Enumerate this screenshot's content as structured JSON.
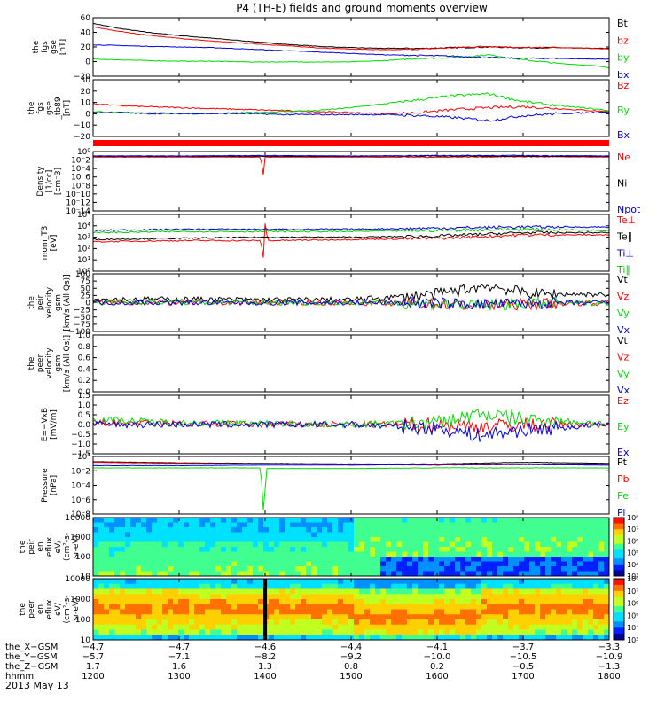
{
  "title": "P4 (TH-E) fields and ground moments overview",
  "date_label": "2013 May 13",
  "colors": {
    "black": "#000000",
    "red": "#ff0000",
    "green": "#00dd00",
    "blue": "#0000dd",
    "lime": "#00c800"
  },
  "chart_data": [
    {
      "type": "line",
      "id": "p1",
      "ylabel": [
        "the",
        "fgs",
        "gse",
        "[nT]"
      ],
      "yticks": [
        "60",
        "40",
        "20",
        "0",
        "−20"
      ],
      "yrange": [
        -20,
        62
      ],
      "series": [
        {
          "name": "Bt",
          "color": "black",
          "x": [
            1200,
            1230,
            1260,
            1300,
            1340,
            1380,
            1420,
            1460,
            1500,
            1540,
            1580,
            1620,
            1660,
            1700,
            1740,
            1780,
            1800
          ],
          "y": [
            54,
            47,
            42,
            37,
            33,
            29,
            25,
            22,
            20,
            19,
            19,
            20,
            21,
            20,
            20,
            19,
            19
          ]
        },
        {
          "name": "bz",
          "color": "red",
          "x": [
            1200,
            1230,
            1260,
            1300,
            1340,
            1380,
            1420,
            1460,
            1500,
            1540,
            1580,
            1620,
            1660,
            1700,
            1740,
            1780,
            1800
          ],
          "y": [
            49,
            43,
            38,
            33,
            29,
            26,
            23,
            20,
            18,
            17,
            18,
            20,
            22,
            20,
            20,
            19,
            18
          ]
        },
        {
          "name": "by",
          "color": "green",
          "x": [
            1200,
            1230,
            1260,
            1300,
            1340,
            1380,
            1420,
            1460,
            1500,
            1540,
            1580,
            1620,
            1660,
            1700,
            1740,
            1780,
            1800
          ],
          "y": [
            4,
            3,
            2,
            1,
            1,
            0,
            0,
            0,
            0,
            2,
            5,
            6,
            10,
            3,
            -2,
            -5,
            -8
          ]
        },
        {
          "name": "bx",
          "color": "blue",
          "x": [
            1200,
            1230,
            1260,
            1300,
            1340,
            1380,
            1420,
            1460,
            1500,
            1540,
            1580,
            1620,
            1660,
            1700,
            1740,
            1780,
            1800
          ],
          "y": [
            24,
            23,
            22,
            21,
            20,
            18,
            16,
            14,
            12,
            10,
            9,
            8,
            6,
            5,
            5,
            4,
            4
          ]
        }
      ]
    },
    {
      "type": "line",
      "id": "p2",
      "ylabel": [
        "the",
        "fgs",
        "gse",
        "_tb89",
        "[nT]"
      ],
      "yticks": [
        "30",
        "20",
        "10",
        "0",
        "−10",
        "−20"
      ],
      "yrange": [
        -25,
        32
      ],
      "series": [
        {
          "name": "Bz",
          "color": "red",
          "x": [
            1200,
            1230,
            1260,
            1300,
            1340,
            1380,
            1420,
            1460,
            1500,
            1540,
            1580,
            1620,
            1660,
            1700,
            1740,
            1780,
            1800
          ],
          "y": [
            8,
            6,
            5,
            4,
            3,
            2,
            1,
            0,
            -1,
            -2,
            -1,
            2,
            4,
            5,
            3,
            1,
            0
          ]
        },
        {
          "name": "By",
          "color": "green",
          "x": [
            1200,
            1230,
            1260,
            1300,
            1340,
            1380,
            1420,
            1460,
            1500,
            1540,
            1580,
            1620,
            1660,
            1700,
            1740,
            1780,
            1800
          ],
          "y": [
            0,
            -1,
            -1,
            -2,
            -2,
            -1,
            0,
            1,
            4,
            8,
            12,
            16,
            18,
            10,
            6,
            3,
            1
          ]
        },
        {
          "name": "Bx",
          "color": "blue",
          "x": [
            1200,
            1230,
            1260,
            1300,
            1340,
            1380,
            1420,
            1460,
            1500,
            1540,
            1580,
            1620,
            1660,
            1700,
            1740,
            1780,
            1800
          ],
          "y": [
            -1,
            -1,
            -2,
            -2,
            -2,
            -2,
            -3,
            -3,
            -3,
            -3,
            -4,
            -6,
            -9,
            -4,
            -2,
            -1,
            0
          ]
        }
      ]
    },
    {
      "type": "line",
      "id": "p3",
      "ylabel": [
        "Density",
        "[1/cc]",
        "[cm⁻3]"
      ],
      "yticks": [
        "10⁰",
        "10⁻2",
        "10⁻4",
        "10⁻6",
        "10⁻8",
        "10⁻10",
        "10⁻12",
        "10⁻14"
      ],
      "yrange": [
        -14,
        1
      ],
      "series": [
        {
          "name": "Ne",
          "color": "red",
          "x": [
            1200,
            1300,
            1395,
            1398,
            1400,
            1403,
            1500,
            1600,
            1700,
            1800
          ],
          "y": [
            -0.4,
            -0.4,
            -0.4,
            -5,
            -0.3,
            -0.4,
            -0.4,
            -0.4,
            -0.3,
            -0.4
          ]
        },
        {
          "name": "Ni",
          "color": "black",
          "x": [
            1200,
            1300,
            1400,
            1500,
            1600,
            1700,
            1800
          ],
          "y": [
            -0.2,
            -0.2,
            -0.2,
            -0.2,
            -0.1,
            -0.2,
            -0.2
          ]
        },
        {
          "name": "Npot",
          "color": "blue",
          "x": [
            1200,
            1300,
            1400,
            1500,
            1600,
            1700,
            1800
          ],
          "y": [
            -0.1,
            -0.1,
            0,
            -0.1,
            0,
            0,
            -0.1
          ]
        }
      ]
    },
    {
      "type": "line",
      "id": "p4",
      "ylabel": [
        "mom_T3",
        "[eV]"
      ],
      "yticks": [
        "10⁵",
        "10⁴",
        "10³",
        "10²",
        "10¹",
        "10⁰"
      ],
      "yrange": [
        0,
        5
      ],
      "series": [
        {
          "name": "Te⊥",
          "color": "red",
          "x": [
            1200,
            1300,
            1395,
            1398,
            1400,
            1403,
            1500,
            1600,
            1700,
            1800
          ],
          "y": [
            2.6,
            2.7,
            2.7,
            1.2,
            4.2,
            2.7,
            2.8,
            2.9,
            3.2,
            3.2
          ]
        },
        {
          "name": "Te∥",
          "color": "black",
          "x": [
            1200,
            1300,
            1400,
            1500,
            1600,
            1700,
            1800
          ],
          "y": [
            2.8,
            2.9,
            3.0,
            3.0,
            3.1,
            3.4,
            3.4
          ]
        },
        {
          "name": "Ti⊥",
          "color": "blue",
          "x": [
            1200,
            1300,
            1400,
            1500,
            1600,
            1700,
            1800
          ],
          "y": [
            3.6,
            3.7,
            3.7,
            3.7,
            3.8,
            3.9,
            3.9
          ]
        },
        {
          "name": "Ti∥",
          "color": "lime",
          "x": [
            1200,
            1300,
            1400,
            1500,
            1600,
            1700,
            1800
          ],
          "y": [
            3.4,
            3.5,
            3.5,
            3.5,
            3.6,
            3.7,
            3.6
          ]
        }
      ]
    },
    {
      "type": "line",
      "id": "p5",
      "ylabel": [
        "the",
        "peir",
        "velocity",
        "gsm",
        "[km/s (All Qs)]"
      ],
      "yticks": [
        "100",
        "75",
        "50",
        "25",
        "0",
        "−25",
        "−50",
        "−75",
        "−100"
      ],
      "yrange": [
        -100,
        100
      ],
      "series": [
        {
          "name": "Vt",
          "color": "black",
          "x": [
            1200,
            1300,
            1400,
            1500,
            1550,
            1600,
            1630,
            1660,
            1690,
            1720,
            1750,
            1800
          ],
          "y": [
            12,
            12,
            10,
            10,
            20,
            30,
            45,
            60,
            40,
            30,
            30,
            28
          ]
        },
        {
          "name": "Vz",
          "color": "red",
          "x": [
            1200,
            1300,
            1400,
            1500,
            1600,
            1650,
            1700,
            1800
          ],
          "y": [
            0,
            0,
            0,
            0,
            -5,
            -10,
            -5,
            0
          ]
        },
        {
          "name": "Vy",
          "color": "green",
          "x": [
            1200,
            1300,
            1400,
            1500,
            1600,
            1650,
            1700,
            1800
          ],
          "y": [
            2,
            1,
            0,
            0,
            -3,
            -12,
            -4,
            0
          ]
        },
        {
          "name": "Vx",
          "color": "blue",
          "x": [
            1200,
            1300,
            1400,
            1500,
            1600,
            1650,
            1700,
            1800
          ],
          "y": [
            0,
            0,
            0,
            0,
            -2,
            -6,
            -3,
            0
          ]
        }
      ]
    },
    {
      "type": "line",
      "id": "p6",
      "ylabel": [
        "the",
        "peer",
        "velocity",
        "gsm",
        "[km/s (All Qs)]"
      ],
      "yticks": [
        "1.0",
        "0.8",
        "0.6",
        "0.4",
        "0.2",
        "0.0"
      ],
      "yrange": [
        0,
        1
      ],
      "series": [
        {
          "name": "Vt",
          "color": "black",
          "x": [],
          "y": []
        },
        {
          "name": "Vz",
          "color": "red",
          "x": [],
          "y": []
        },
        {
          "name": "Vy",
          "color": "green",
          "x": [],
          "y": []
        },
        {
          "name": "Vx",
          "color": "blue",
          "x": [],
          "y": []
        }
      ]
    },
    {
      "type": "line",
      "id": "p7",
      "ylabel": [
        "E=−VxB",
        "[mV/m]"
      ],
      "yticks": [
        "1.5",
        "1.0",
        "0.5",
        "0.0",
        "−0.5",
        "−1.0",
        "−1.5"
      ],
      "yrange": [
        -1.6,
        1.6
      ],
      "series": [
        {
          "name": "Ez",
          "color": "red",
          "x": [
            1200,
            1300,
            1400,
            1500,
            1600,
            1650,
            1700,
            1800
          ],
          "y": [
            0.1,
            0.05,
            0,
            0,
            0,
            -0.1,
            0,
            0
          ]
        },
        {
          "name": "Ey",
          "color": "green",
          "x": [
            1200,
            1300,
            1400,
            1500,
            1600,
            1650,
            1700,
            1800
          ],
          "y": [
            0.3,
            0.1,
            0.05,
            0,
            0.1,
            0.6,
            0.3,
            0.05
          ]
        },
        {
          "name": "Ex",
          "color": "blue",
          "x": [
            1200,
            1300,
            1400,
            1500,
            1600,
            1650,
            1700,
            1800
          ],
          "y": [
            0,
            0,
            0,
            0,
            -0.2,
            -0.6,
            -0.3,
            0
          ]
        }
      ]
    },
    {
      "type": "line",
      "id": "p8",
      "ylabel": [
        "Pressure",
        "[nPa]"
      ],
      "yticks": [
        "10⁰",
        "10⁻2",
        "10⁻4",
        "10⁻6",
        "10⁻8"
      ],
      "yrange": [
        -9,
        1
      ],
      "series": [
        {
          "name": "Pt",
          "color": "black",
          "x": [
            1200,
            1300,
            1400,
            1500,
            1600,
            1700,
            1800
          ],
          "y": [
            0.1,
            -0.1,
            -0.2,
            -0.3,
            -0.3,
            0.0,
            -0.2
          ]
        },
        {
          "name": "Pb",
          "color": "red",
          "x": [
            1200,
            1300,
            1400,
            1500,
            1600,
            1700,
            1800
          ],
          "y": [
            0.0,
            -0.2,
            -0.3,
            -0.4,
            -0.5,
            -0.4,
            -0.5
          ]
        },
        {
          "name": "Pe",
          "color": "green",
          "x": [
            1200,
            1300,
            1395,
            1398,
            1402,
            1500,
            1600,
            1700,
            1800
          ],
          "y": [
            -1.0,
            -1.0,
            -1.0,
            -8.5,
            -1.1,
            -1.1,
            -1.0,
            -1.0,
            -1.0
          ]
        },
        {
          "name": "Pi",
          "color": "blue",
          "x": [
            1200,
            1300,
            1400,
            1500,
            1600,
            1700,
            1800
          ],
          "y": [
            -0.6,
            -0.6,
            -0.5,
            -0.5,
            -0.4,
            -0.4,
            -0.5
          ]
        }
      ]
    },
    {
      "type": "heatmap",
      "id": "p9",
      "ylabel": [
        "the",
        "peir",
        "en",
        "eflux",
        "eV/",
        "(cm²-s-",
        "sr-eV)"
      ],
      "yticks": [
        "10000",
        "1000",
        "100",
        "10"
      ],
      "colorbar_ticks": [
        "10⁸",
        "10⁷",
        "10⁶",
        "10⁵",
        "10⁴",
        "10³"
      ],
      "energy_range_log10": [
        0.9,
        4.3
      ]
    },
    {
      "type": "heatmap",
      "id": "p10",
      "ylabel": [
        "the",
        "peer",
        "en",
        "eflux",
        "eV/",
        "(cm²-s-",
        "sr-eV)"
      ],
      "yticks": [
        "10000",
        "1000",
        "100",
        "10"
      ],
      "colorbar_ticks": [
        "10⁸",
        "10⁷",
        "10⁶",
        "10⁵",
        "10⁴",
        "10³"
      ],
      "energy_range_log10": [
        0.9,
        4.3
      ]
    }
  ],
  "xaxis": {
    "range": [
      1200,
      1800
    ],
    "row_labels": [
      "the_X−GSM",
      "the_Y−GSM",
      "the_Z−GSM",
      "hhmm"
    ],
    "ticks": [
      {
        "x": 1200,
        "X": "−4.7",
        "Y": "−5.7",
        "Z": "1.7",
        "hhmm": "1200"
      },
      {
        "x": 1300,
        "X": "−4.7",
        "Y": "−7.1",
        "Z": "1.6",
        "hhmm": "1300"
      },
      {
        "x": 1400,
        "X": "−4.6",
        "Y": "−8.2",
        "Z": "1.3",
        "hhmm": "1400"
      },
      {
        "x": 1500,
        "X": "−4.4",
        "Y": "−9.2",
        "Z": "0.8",
        "hhmm": "1500"
      },
      {
        "x": 1600,
        "X": "−4.1",
        "Y": "−10.0",
        "Z": "0.2",
        "hhmm": "1600"
      },
      {
        "x": 1700,
        "X": "−3.7",
        "Y": "−10.5",
        "Z": "−0.5",
        "hhmm": "1700"
      },
      {
        "x": 1800,
        "X": "−3.3",
        "Y": "−10.9",
        "Z": "−1.3",
        "hhmm": "1800"
      }
    ]
  }
}
